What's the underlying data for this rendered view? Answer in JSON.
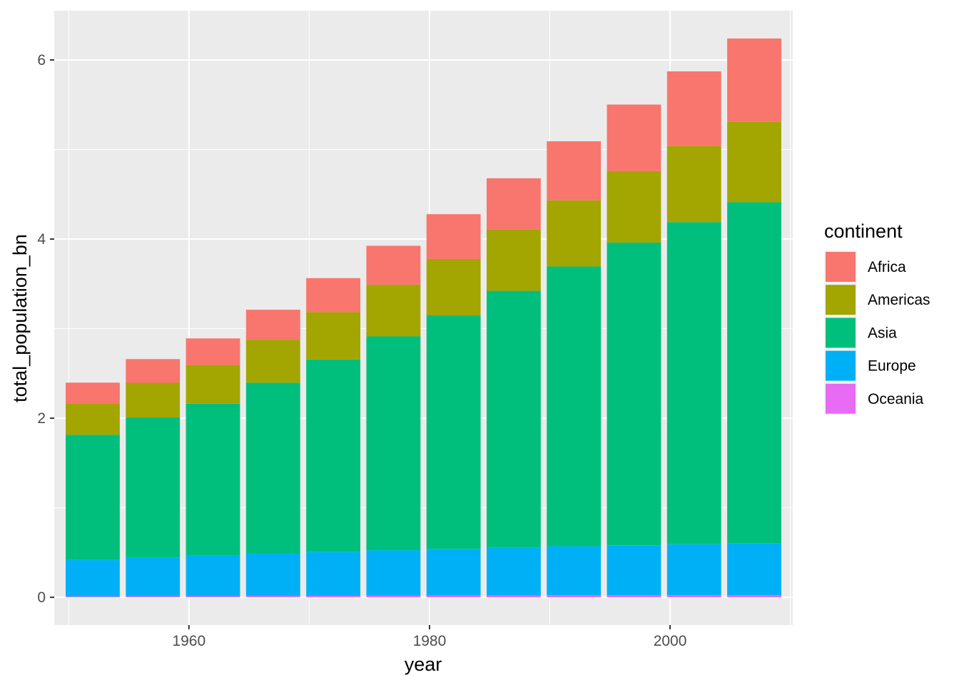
{
  "chart_data": {
    "type": "bar",
    "stacked": true,
    "x": [
      1952,
      1957,
      1962,
      1967,
      1972,
      1977,
      1982,
      1987,
      1992,
      1997,
      2002,
      2007
    ],
    "xlabel": "year",
    "ylabel": "total_population_bn",
    "xlim": [
      1948.8,
      2010.2
    ],
    "ylim": [
      -0.31,
      6.55
    ],
    "x_ticks": [
      1960,
      1980,
      2000
    ],
    "x_tick_labels": [
      "1960",
      "1980",
      "2000"
    ],
    "y_ticks": [
      0,
      2,
      4,
      6
    ],
    "y_tick_labels": [
      "0",
      "2",
      "4",
      "6"
    ],
    "x_minor_gridlines": [
      1950,
      1970,
      1990,
      2010
    ],
    "y_minor_gridlines": [
      1,
      3,
      5
    ],
    "grid": true,
    "legend": {
      "title": "continent",
      "position": "right"
    },
    "series": [
      {
        "name": "Oceania",
        "color": "#E76BF3",
        "values": [
          0.01,
          0.012,
          0.013,
          0.015,
          0.016,
          0.018,
          0.019,
          0.021,
          0.022,
          0.024,
          0.025,
          0.025
        ]
      },
      {
        "name": "Europe",
        "color": "#00B0F6",
        "values": [
          0.408,
          0.432,
          0.453,
          0.472,
          0.492,
          0.508,
          0.521,
          0.532,
          0.548,
          0.556,
          0.567,
          0.579
        ]
      },
      {
        "name": "Asia",
        "color": "#00BF7D",
        "values": [
          1.397,
          1.565,
          1.696,
          1.909,
          2.148,
          2.387,
          2.608,
          2.869,
          3.124,
          3.381,
          3.597,
          3.807
        ]
      },
      {
        "name": "Americas",
        "color": "#A3A500",
        "values": [
          0.345,
          0.386,
          0.433,
          0.48,
          0.529,
          0.578,
          0.63,
          0.683,
          0.739,
          0.797,
          0.85,
          0.899
        ]
      },
      {
        "name": "Africa",
        "color": "#F8766D",
        "values": [
          0.237,
          0.265,
          0.296,
          0.335,
          0.379,
          0.434,
          0.5,
          0.574,
          0.659,
          0.744,
          0.834,
          0.93
        ]
      }
    ],
    "legend_order": [
      "Africa",
      "Americas",
      "Asia",
      "Europe",
      "Oceania"
    ]
  }
}
